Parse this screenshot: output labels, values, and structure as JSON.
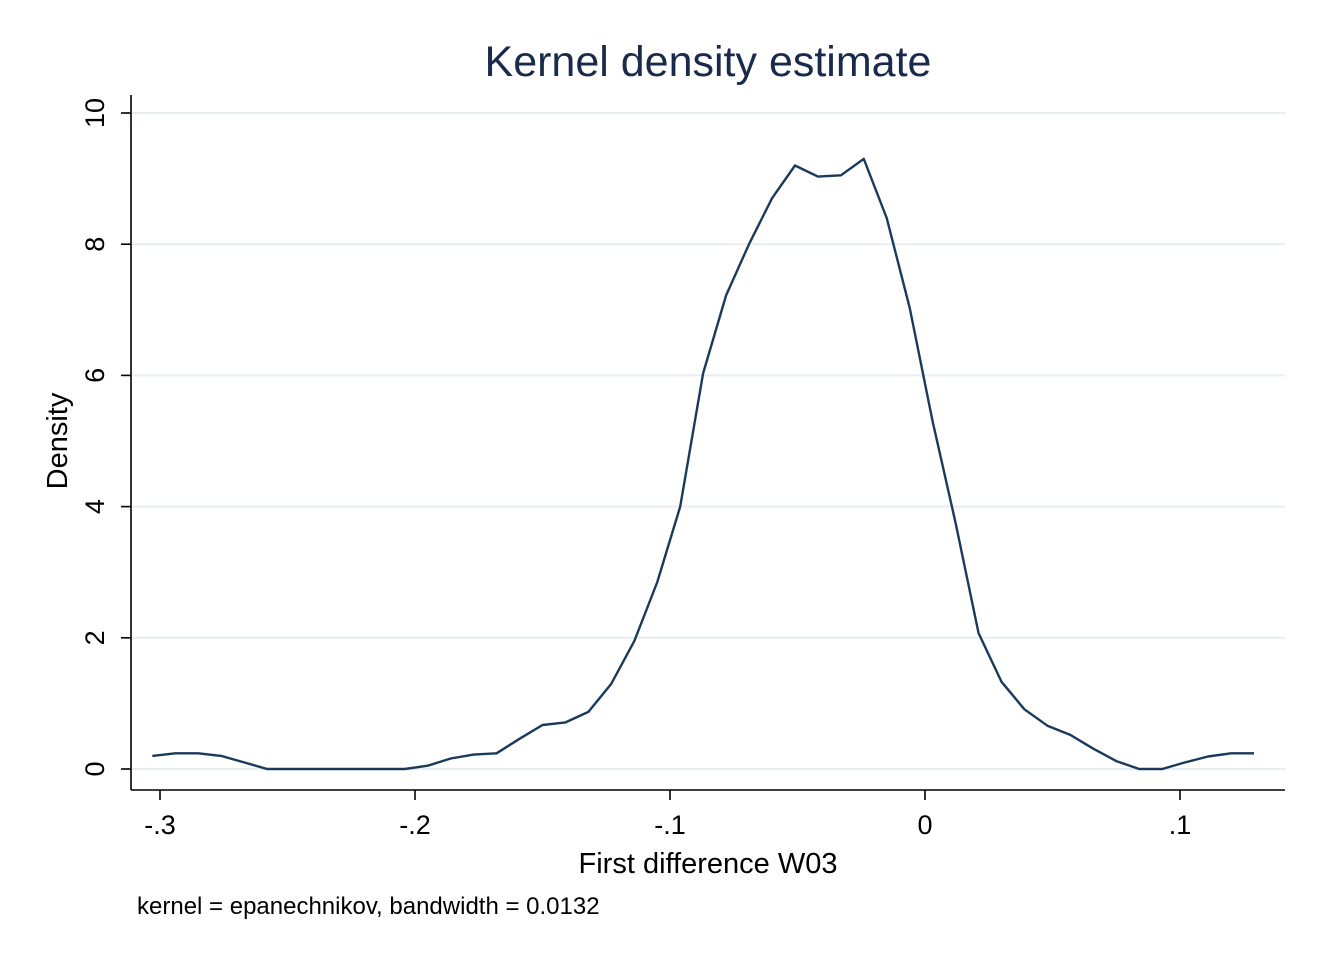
{
  "chart_data": {
    "type": "line",
    "title": "Kernel density estimate",
    "xlabel": "First difference W03",
    "ylabel": "Density",
    "note": "kernel = epanechnikov, bandwidth = 0.0132",
    "xlim": [
      -0.31,
      0.142
    ],
    "ylim": [
      -0.3,
      10.3
    ],
    "xticks": [
      {
        "value": -0.3,
        "label": "-.3"
      },
      {
        "value": -0.2,
        "label": "-.2"
      },
      {
        "value": -0.1,
        "label": "-.1"
      },
      {
        "value": 0,
        "label": "0"
      },
      {
        "value": 0.1,
        "label": ".1"
      }
    ],
    "yticks": [
      {
        "value": 0,
        "label": "0"
      },
      {
        "value": 2,
        "label": "2"
      },
      {
        "value": 4,
        "label": "4"
      },
      {
        "value": 6,
        "label": "6"
      },
      {
        "value": 8,
        "label": "8"
      },
      {
        "value": 10,
        "label": "10"
      }
    ],
    "grid": true,
    "series": [
      {
        "color": "#1a3a5c",
        "x": [
          -0.303,
          -0.294,
          -0.285,
          -0.276,
          -0.267,
          -0.258,
          -0.249,
          -0.24,
          -0.231,
          -0.222,
          -0.213,
          -0.204,
          -0.195,
          -0.186,
          -0.177,
          -0.168,
          -0.159,
          -0.15,
          -0.141,
          -0.132,
          -0.123,
          -0.114,
          -0.105,
          -0.096,
          -0.087,
          -0.078,
          -0.069,
          -0.06,
          -0.051,
          -0.042,
          -0.033,
          -0.024,
          -0.015,
          -0.006,
          0.003,
          0.012,
          0.021,
          0.03,
          0.039,
          0.048,
          0.057,
          0.066,
          0.075,
          0.084,
          0.093,
          0.102,
          0.111,
          0.12,
          0.129
        ],
        "y": [
          0.2,
          0.24,
          0.24,
          0.2,
          0.1,
          0.0,
          0.0,
          0.0,
          0.0,
          0.0,
          0.0,
          0.0,
          0.05,
          0.16,
          0.22,
          0.24,
          0.46,
          0.67,
          0.71,
          0.87,
          1.3,
          1.95,
          2.85,
          4.0,
          6.03,
          7.22,
          8.0,
          8.7,
          9.2,
          9.03,
          9.05,
          9.3,
          8.4,
          7.03,
          5.3,
          3.75,
          2.07,
          1.33,
          0.91,
          0.66,
          0.52,
          0.31,
          0.12,
          0.0,
          0.0,
          0.1,
          0.19,
          0.24,
          0.24
        ]
      }
    ]
  },
  "colors": {
    "title": "#1a2a4d",
    "line": "#1a3a5c",
    "grid": "#e8eef0",
    "axis": "#000000"
  }
}
